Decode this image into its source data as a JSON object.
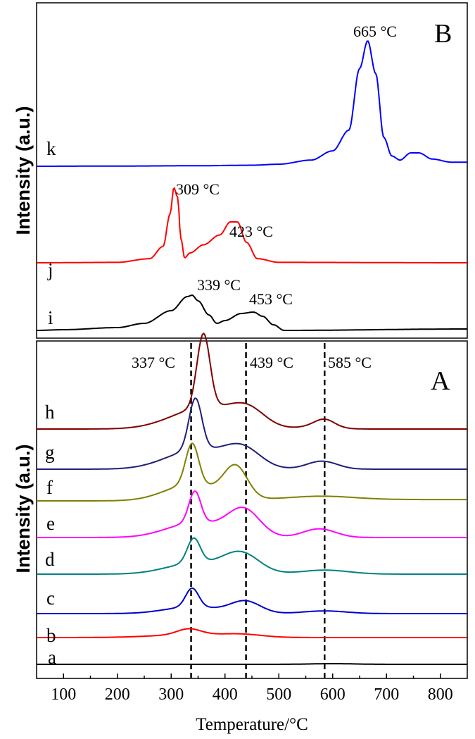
{
  "chart_data": [
    {
      "panel": "B",
      "type": "line",
      "panel_label": "B",
      "ylabel": "Intensity (a.u.)",
      "xlim": [
        50,
        850
      ],
      "series": [
        {
          "name": "k",
          "color": "#0000ff",
          "points": [
            [
              50,
              0
            ],
            [
              200,
              0.02
            ],
            [
              350,
              0.05
            ],
            [
              450,
              0.1
            ],
            [
              500,
              0.2
            ],
            [
              560,
              0.6
            ],
            [
              600,
              1.5
            ],
            [
              630,
              3.5
            ],
            [
              650,
              9.5
            ],
            [
              665,
              12.2
            ],
            [
              680,
              9
            ],
            [
              695,
              2.8
            ],
            [
              710,
              1.0
            ],
            [
              725,
              0.6
            ],
            [
              745,
              1.3
            ],
            [
              760,
              1.3
            ],
            [
              785,
              0.7
            ],
            [
              820,
              0.4
            ],
            [
              850,
              0.4
            ]
          ]
        },
        {
          "name": "j",
          "color": "#ff0000",
          "points": [
            [
              50,
              0
            ],
            [
              200,
              0.05
            ],
            [
              260,
              0.5
            ],
            [
              285,
              2.0
            ],
            [
              298,
              6
            ],
            [
              305,
              9.2
            ],
            [
              312,
              8
            ],
            [
              318,
              3
            ],
            [
              325,
              0.6
            ],
            [
              335,
              1.2
            ],
            [
              360,
              2.2
            ],
            [
              390,
              3.4
            ],
            [
              410,
              5.0
            ],
            [
              423,
              5.0
            ],
            [
              440,
              2.5
            ],
            [
              460,
              0.5
            ],
            [
              500,
              0.05
            ],
            [
              850,
              0
            ]
          ]
        },
        {
          "name": "i",
          "color": "#000000",
          "points": [
            [
              50,
              0
            ],
            [
              100,
              0.1
            ],
            [
              200,
              0.4
            ],
            [
              250,
              1.0
            ],
            [
              300,
              2.8
            ],
            [
              330,
              4.8
            ],
            [
              339,
              5.0
            ],
            [
              350,
              4.2
            ],
            [
              370,
              2.2
            ],
            [
              385,
              1.0
            ],
            [
              400,
              1.4
            ],
            [
              430,
              2.4
            ],
            [
              453,
              2.6
            ],
            [
              470,
              2.0
            ],
            [
              490,
              0.8
            ],
            [
              510,
              0
            ],
            [
              850,
              0.2
            ]
          ]
        }
      ],
      "annotations": [
        {
          "text": "665 °C",
          "x": 665,
          "series": "k"
        },
        {
          "text": "309 °C",
          "x": 309,
          "series": "j"
        },
        {
          "text": "423 °C",
          "x": 423,
          "series": "j"
        },
        {
          "text": "339 °C",
          "x": 339,
          "series": "i"
        },
        {
          "text": "453 °C",
          "x": 453,
          "series": "i"
        }
      ]
    },
    {
      "panel": "A",
      "type": "line",
      "panel_label": "A",
      "ylabel": "Intensity (a.u.)",
      "xlabel": "Temperature/°C",
      "xlim": [
        50,
        850
      ],
      "xticks": [
        100,
        200,
        300,
        400,
        500,
        600,
        700,
        800
      ],
      "reference_lines": [
        337,
        439,
        585
      ],
      "series": [
        {
          "name": "h",
          "color": "#800000",
          "scale": 1.0,
          "peaks": [
            [
              360,
              110,
              12
            ],
            [
              362,
              32,
              60
            ],
            [
              442,
              24,
              32
            ],
            [
              575,
              5,
              30
            ],
            [
              585,
              10,
              18
            ]
          ],
          "tail": 0
        },
        {
          "name": "g",
          "color": "#1f1f7a",
          "scale": 1.0,
          "peaks": [
            [
              345,
              77,
              12
            ],
            [
              345,
              28,
              55
            ],
            [
              432,
              29,
              34
            ],
            [
              580,
              12,
              28
            ]
          ],
          "tail": 0
        },
        {
          "name": "f",
          "color": "#808000",
          "scale": 1.0,
          "peaks": [
            [
              339,
              61,
              12
            ],
            [
              339,
              25,
              50
            ],
            [
              420,
              47,
              22
            ],
            [
              580,
              5,
              60
            ]
          ],
          "tail": 2
        },
        {
          "name": "e",
          "color": "#ff00ff",
          "scale": 1.0,
          "peaks": [
            [
              344,
              47,
              11
            ],
            [
              344,
              22,
              52
            ],
            [
              435,
              40,
              30
            ],
            [
              575,
              13,
              30
            ]
          ],
          "tail": 0
        },
        {
          "name": "d",
          "color": "#008080",
          "scale": 1.0,
          "peaks": [
            [
              342,
              37,
              12
            ],
            [
              342,
              16,
              52
            ],
            [
              430,
              30,
              34
            ],
            [
              585,
              6,
              45
            ]
          ],
          "tail": 0
        },
        {
          "name": "c",
          "color": "#0000cc",
          "scale": 1.0,
          "peaks": [
            [
              339,
              28,
              12
            ],
            [
              339,
              10,
              50
            ],
            [
              438,
              18,
              28
            ],
            [
              585,
              4,
              40
            ]
          ],
          "tail": 0
        },
        {
          "name": "b",
          "color": "#ff0000",
          "scale": 1.0,
          "peaks": [
            [
              333,
              9,
              22
            ],
            [
              333,
              4,
              70
            ],
            [
              430,
              4,
              40
            ]
          ],
          "tail": 0
        },
        {
          "name": "a",
          "color": "#000000",
          "scale": 1.0,
          "peaks": [
            [
              600,
              1,
              40
            ]
          ],
          "tail": 0
        }
      ],
      "annotations": [
        {
          "text": "337 °C",
          "x": 337
        },
        {
          "text": "439 °C",
          "x": 439
        },
        {
          "text": "585 °C",
          "x": 585
        }
      ]
    }
  ],
  "labels": {
    "panel_b": "B",
    "panel_a": "A",
    "ylabel_b": "Intensity (a.u.)",
    "ylabel_a": "Intensity (a.u.)",
    "xlabel": "Temperature/°C",
    "ann_665": "665 °C",
    "ann_309": "309 °C",
    "ann_423": "423 °C",
    "ann_339": "339 °C",
    "ann_453": "453 °C",
    "ann_337": "337 °C",
    "ann_439": "439 °C",
    "ann_585": "585 °C",
    "k": "k",
    "j": "j",
    "i": "i",
    "h": "h",
    "g": "g",
    "f": "f",
    "e": "e",
    "d": "d",
    "c": "c",
    "b": "b",
    "a": "a",
    "tick_100": "100",
    "tick_200": "200",
    "tick_300": "300",
    "tick_400": "400",
    "tick_500": "500",
    "tick_600": "600",
    "tick_700": "700",
    "tick_800": "800"
  }
}
